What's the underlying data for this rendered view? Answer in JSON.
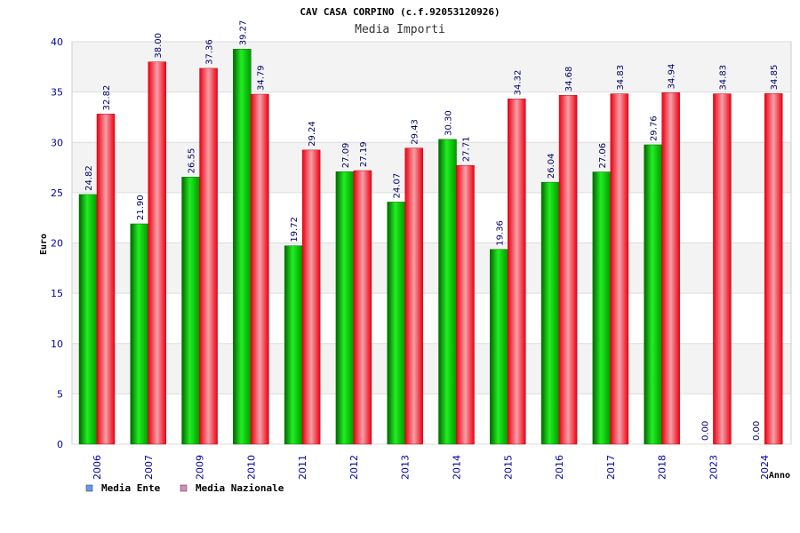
{
  "chart_data": {
    "type": "bar",
    "title": "CAV CASA CORPINO (c.f.92053120926)",
    "subtitle": "Media Importi",
    "xlabel": "Anno",
    "ylabel": "Euro",
    "ylim": [
      0,
      40
    ],
    "yticks": [
      "0",
      "5",
      "10",
      "15",
      "20",
      "25",
      "30",
      "35",
      "40"
    ],
    "grid": true,
    "legend_position": "bottom-left",
    "categories": [
      "2006",
      "2007",
      "2009",
      "2010",
      "2011",
      "2012",
      "2013",
      "2014",
      "2015",
      "2016",
      "2017",
      "2018",
      "2023",
      "2024"
    ],
    "series": [
      {
        "name": "Media Ente",
        "color": "#00aa00",
        "legend_color": "#6699ee",
        "values": [
          24.82,
          21.9,
          26.55,
          39.27,
          19.72,
          27.09,
          24.07,
          30.3,
          19.36,
          26.04,
          27.06,
          29.76,
          0.0,
          0.0
        ],
        "labels": [
          "24.82",
          "21.90",
          "26.55",
          "39.27",
          "19.72",
          "27.09",
          "24.07",
          "30.30",
          "19.36",
          "26.04",
          "27.06",
          "29.76",
          "0.00",
          "0.00"
        ]
      },
      {
        "name": "Media Nazionale",
        "color": "#ee1122",
        "legend_color": "#dd88bb",
        "values": [
          32.82,
          38.0,
          37.36,
          34.79,
          29.24,
          27.19,
          29.43,
          27.71,
          34.32,
          34.68,
          34.83,
          34.94,
          34.83,
          34.85
        ],
        "labels": [
          "32.82",
          "38.00",
          "37.36",
          "34.79",
          "29.24",
          "27.19",
          "29.43",
          "27.71",
          "34.32",
          "34.68",
          "34.83",
          "34.94",
          "34.83",
          "34.85"
        ]
      }
    ]
  }
}
